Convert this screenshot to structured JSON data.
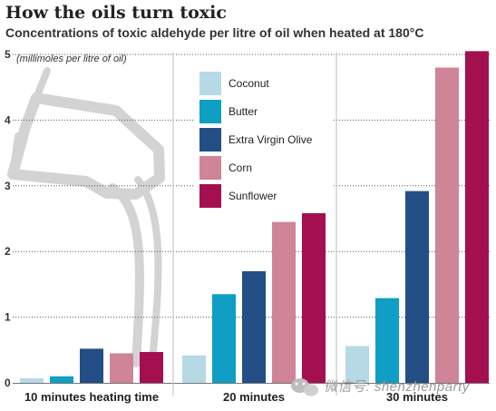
{
  "title": "How the oils turn toxic",
  "subtitle": "Concentrations of toxic aldehyde per litre of oil when heated at 180°C",
  "watermark": "微信号: shenzhenparty",
  "chart_data": {
    "type": "bar",
    "title": "How the oils turn toxic",
    "subtitle": "Concentrations of toxic aldehyde per litre of oil when heated at 180°C",
    "ylabel": "(millimoles per litre of oil)",
    "xlabel": "",
    "ylim": [
      0,
      5
    ],
    "yticks": [
      0,
      1,
      2,
      3,
      4,
      5
    ],
    "grid": "dotted horizontal gridlines",
    "legend_position": "top-center",
    "categories": [
      "10 minutes heating time",
      "20 minutes",
      "30 minutes"
    ],
    "series": [
      {
        "name": "Coconut",
        "color": "#b7d9e6",
        "values": [
          0.07,
          0.42,
          0.56
        ]
      },
      {
        "name": "Butter",
        "color": "#0f9ec4",
        "values": [
          0.1,
          1.35,
          1.29
        ]
      },
      {
        "name": "Extra Virgin Olive",
        "color": "#234e86",
        "values": [
          0.52,
          1.7,
          2.92
        ]
      },
      {
        "name": "Corn",
        "color": "#cf8497",
        "values": [
          0.45,
          2.45,
          4.8
        ]
      },
      {
        "name": "Sunflower",
        "color": "#a4104f",
        "values": [
          0.47,
          3.15,
          5.05
        ]
      }
    ]
  }
}
